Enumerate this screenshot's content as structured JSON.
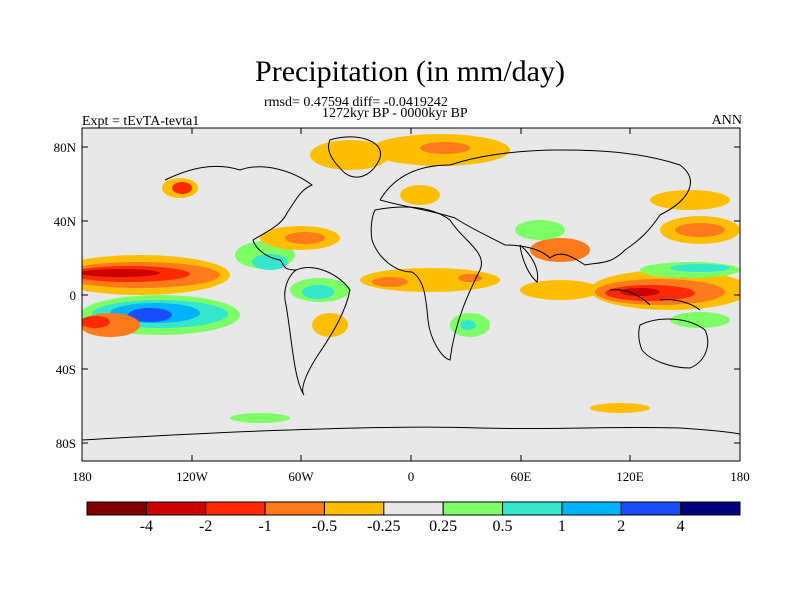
{
  "title": "Precipitation (in mm/day)",
  "stats": "rmsd= 0.47594 diff= -0.0419242",
  "period": "1272kyr BP - 0000kyr BP",
  "experiment": "Expt = tEvTA-tevta1",
  "season": "ANN",
  "lat_ticks": [
    "80N",
    "40N",
    "0",
    "40S",
    "80S"
  ],
  "lon_ticks": [
    "180",
    "120W",
    "60W",
    "0",
    "60E",
    "120E",
    "180"
  ],
  "colorbar": {
    "labels": [
      "-4",
      "-2",
      "-1",
      "-0.5",
      "-0.25",
      "0.25",
      "0.5",
      "1",
      "2",
      "4"
    ],
    "colors": [
      "#800000",
      "#cc0000",
      "#ff2a00",
      "#ff7a1a",
      "#ffbf00",
      "#e8e8e8",
      "#7dff66",
      "#33e6cc",
      "#00b3ff",
      "#1a4dff",
      "#000080"
    ]
  },
  "colors": {
    "ocean_background": "#e8e8e8",
    "dry_strong": "#cc0000",
    "dry": "#ff2a00",
    "dry_moderate": "#ff7a1a",
    "dry_weak": "#ffbf00",
    "wet_weak": "#7dff66",
    "wet": "#33e6cc",
    "wet_moderate": "#00b3ff",
    "wet_strong": "#1a4dff"
  }
}
